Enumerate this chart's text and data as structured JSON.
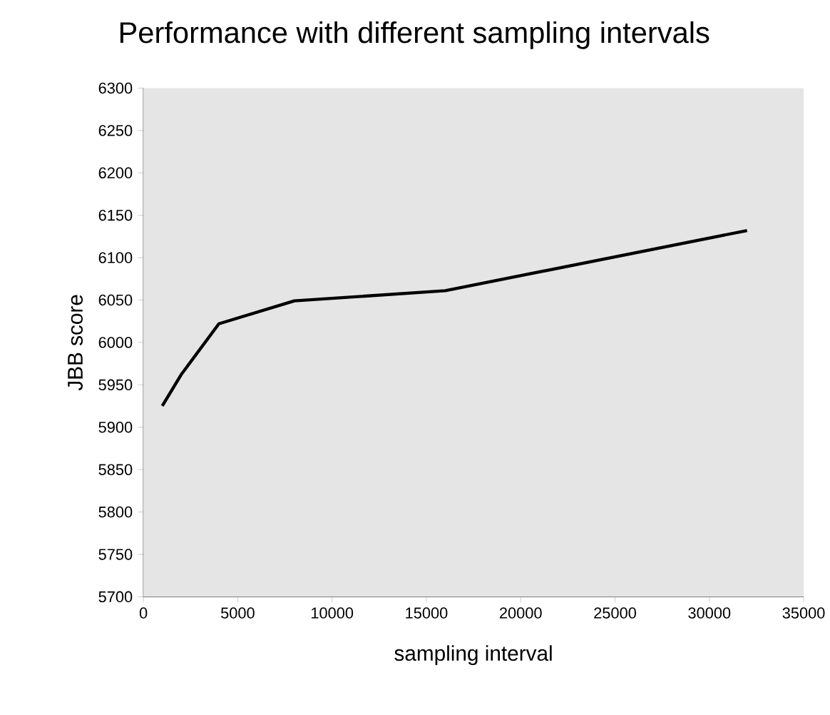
{
  "chart_data": {
    "type": "line",
    "title": "Performance with different sampling intervals",
    "xlabel": "sampling interval",
    "ylabel": "JBB score",
    "x": [
      1000,
      2000,
      4000,
      8000,
      16000,
      32000
    ],
    "values": [
      5925,
      5962,
      6022,
      6049,
      6061,
      6132
    ],
    "color": "#000000",
    "line_style": "solid",
    "marker": "none",
    "xlim": [
      0,
      35000
    ],
    "ylim": [
      5700,
      6300
    ],
    "xticks": [
      0,
      5000,
      10000,
      15000,
      20000,
      25000,
      30000,
      35000
    ],
    "yticks": [
      5700,
      5750,
      5800,
      5850,
      5900,
      5950,
      6000,
      6050,
      6100,
      6150,
      6200,
      6250,
      6300
    ]
  }
}
